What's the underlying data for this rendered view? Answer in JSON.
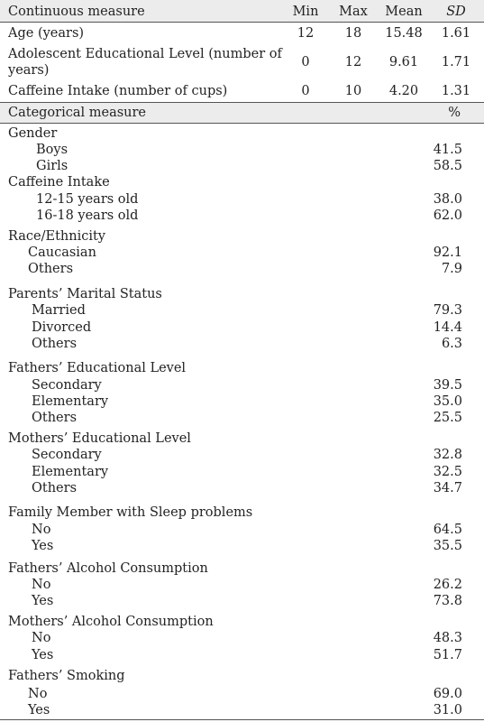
{
  "continuous": {
    "header": {
      "measure": "Continuous measure",
      "min": "Min",
      "max": "Max",
      "mean": "Mean",
      "sd": "SD"
    },
    "rows": [
      {
        "label": "Age (years)",
        "min": "12",
        "max": "18",
        "mean": "15.48",
        "sd": "1.61"
      },
      {
        "label_line1": "Adolescent Educational Level (number of",
        "label_line2": "years)",
        "min": "0",
        "max": "12",
        "mean": "9.61",
        "sd": "1.71"
      },
      {
        "label": "Caffeine Intake (number of cups)",
        "min": "0",
        "max": "10",
        "mean": "4.20",
        "sd": "1.31"
      }
    ]
  },
  "categorical": {
    "header": {
      "measure": "Categorical measure",
      "pct": "%"
    },
    "groups": [
      {
        "title": "Gender",
        "items": [
          {
            "label": "Boys",
            "pct": "41.5"
          },
          {
            "label": "Girls",
            "pct": "58.5"
          }
        ]
      },
      {
        "title": "Caffeine Intake",
        "items": [
          {
            "label": "12-15 years old",
            "pct": "38.0"
          },
          {
            "label": "16-18 years old",
            "pct": "62.0"
          }
        ]
      },
      {
        "title": "Race/Ethnicity",
        "items": [
          {
            "label": "Caucasian",
            "pct": "92.1"
          },
          {
            "label": "Others",
            "pct": "7.9"
          }
        ]
      },
      {
        "title": "Parents’ Marital Status",
        "items": [
          {
            "label": "Married",
            "pct": "79.3"
          },
          {
            "label": "Divorced",
            "pct": "14.4"
          },
          {
            "label": "Others",
            "pct": "6.3"
          }
        ]
      },
      {
        "title": "Fathers’ Educational Level",
        "items": [
          {
            "label": "Secondary",
            "pct": "39.5"
          },
          {
            "label": "Elementary",
            "pct": "35.0"
          },
          {
            "label": "Others",
            "pct": "25.5"
          }
        ]
      },
      {
        "title": "Mothers’ Educational Level",
        "items": [
          {
            "label": "Secondary",
            "pct": "32.8"
          },
          {
            "label": "Elementary",
            "pct": "32.5"
          },
          {
            "label": "Others",
            "pct": "34.7"
          }
        ]
      },
      {
        "title": "Family Member with Sleep problems",
        "items": [
          {
            "label": "No",
            "pct": "64.5"
          },
          {
            "label": "Yes",
            "pct": "35.5"
          }
        ]
      },
      {
        "title": "Fathers’ Alcohol Consumption",
        "items": [
          {
            "label": "No",
            "pct": "26.2"
          },
          {
            "label": "Yes",
            "pct": "73.8"
          }
        ]
      },
      {
        "title": "Mothers’ Alcohol Consumption",
        "items": [
          {
            "label": "No",
            "pct": "48.3"
          },
          {
            "label": "Yes",
            "pct": "51.7"
          }
        ]
      },
      {
        "title": "Fathers’ Smoking",
        "items": [
          {
            "label": "No",
            "pct": "69.0"
          },
          {
            "label": "Yes",
            "pct": "31.0"
          }
        ]
      }
    ]
  }
}
